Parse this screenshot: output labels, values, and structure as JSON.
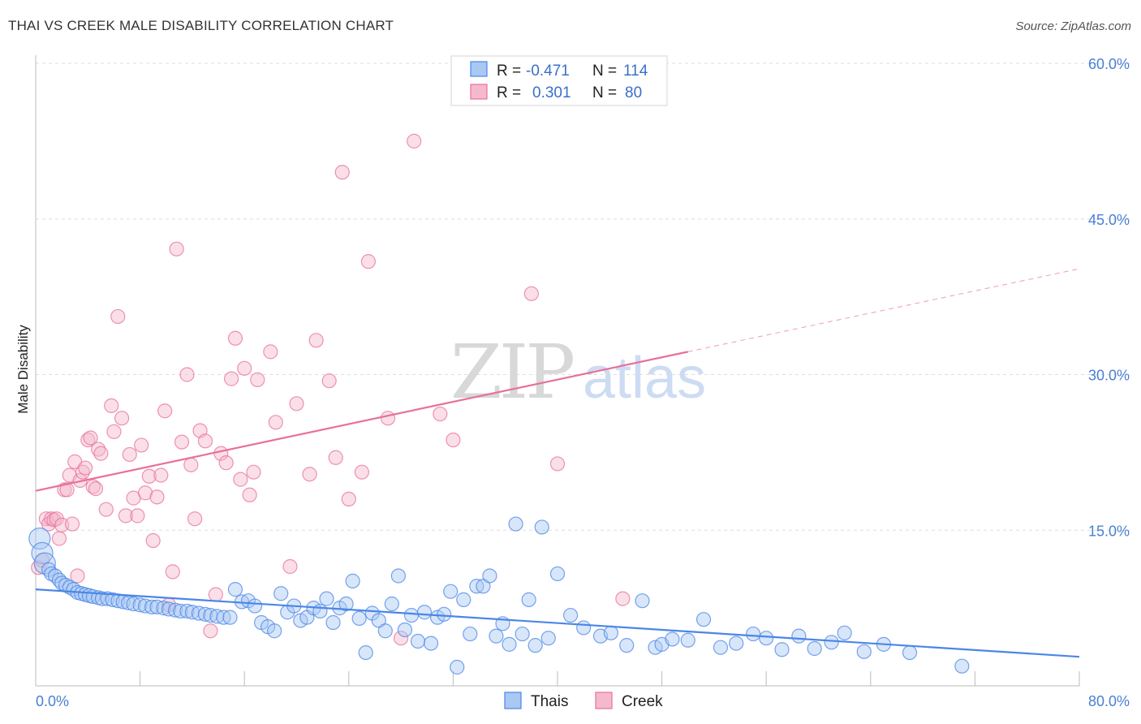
{
  "header": {
    "title": "THAI VS CREEK MALE DISABILITY CORRELATION CHART",
    "source": "Source: ZipAtlas.com"
  },
  "watermark": {
    "zip": "ZIP",
    "atlas": "atlas"
  },
  "colors": {
    "thais": "#4a86e8",
    "thais_fill": "#a9c8f2",
    "creek": "#e8709a",
    "creek_fill": "#f5b9cd",
    "grid": "#dddddd",
    "tick_label": "#4a7fd4"
  },
  "legend": {
    "rows": [
      {
        "r_label": "R =",
        "r_value": "-0.471",
        "n_label": "N =",
        "n_value": "114"
      },
      {
        "r_label": "R =",
        "r_value": "0.301",
        "n_label": "N =",
        "n_value": "80"
      }
    ],
    "bottom": [
      "Thais",
      "Creek"
    ]
  },
  "chart_data": {
    "type": "scatter",
    "title": "THAI VS CREEK MALE DISABILITY CORRELATION CHART",
    "xlabel": "",
    "ylabel": "Male Disability",
    "xlim": [
      0,
      80
    ],
    "ylim": [
      0,
      60
    ],
    "x_tick_labels": [
      "0.0%",
      "80.0%"
    ],
    "y_tick_labels": [
      "15.0%",
      "30.0%",
      "45.0%",
      "60.0%"
    ],
    "y_ticks": [
      15,
      30,
      45,
      60
    ],
    "grid": true,
    "legend_position": "top-center",
    "series": [
      {
        "name": "Thais",
        "r": -0.471,
        "n": 114,
        "trend": {
          "x0": 0,
          "y0": 9.3,
          "x1": 80,
          "y1": 2.8
        },
        "points": [
          [
            0.3,
            14.2
          ],
          [
            0.5,
            12.8
          ],
          [
            0.7,
            11.8
          ],
          [
            1.0,
            11.2
          ],
          [
            1.2,
            10.8
          ],
          [
            1.5,
            10.6
          ],
          [
            1.8,
            10.2
          ],
          [
            2.0,
            9.9
          ],
          [
            2.3,
            9.7
          ],
          [
            2.6,
            9.5
          ],
          [
            2.9,
            9.3
          ],
          [
            3.2,
            9.0
          ],
          [
            3.5,
            8.9
          ],
          [
            3.8,
            8.8
          ],
          [
            4.1,
            8.7
          ],
          [
            4.4,
            8.6
          ],
          [
            4.8,
            8.5
          ],
          [
            5.1,
            8.4
          ],
          [
            5.5,
            8.4
          ],
          [
            5.9,
            8.3
          ],
          [
            6.3,
            8.2
          ],
          [
            6.7,
            8.1
          ],
          [
            7.1,
            8.0
          ],
          [
            7.5,
            7.9
          ],
          [
            8.0,
            7.8
          ],
          [
            8.4,
            7.7
          ],
          [
            8.9,
            7.6
          ],
          [
            9.3,
            7.6
          ],
          [
            9.8,
            7.5
          ],
          [
            10.2,
            7.4
          ],
          [
            10.7,
            7.3
          ],
          [
            11.1,
            7.2
          ],
          [
            11.6,
            7.2
          ],
          [
            12.0,
            7.1
          ],
          [
            12.5,
            7.0
          ],
          [
            13.0,
            6.9
          ],
          [
            13.4,
            6.8
          ],
          [
            13.9,
            6.7
          ],
          [
            14.4,
            6.6
          ],
          [
            14.9,
            6.6
          ],
          [
            15.3,
            9.3
          ],
          [
            15.8,
            8.1
          ],
          [
            16.3,
            8.2
          ],
          [
            16.8,
            7.7
          ],
          [
            17.3,
            6.1
          ],
          [
            17.8,
            5.7
          ],
          [
            18.3,
            5.3
          ],
          [
            18.8,
            8.9
          ],
          [
            19.3,
            7.1
          ],
          [
            19.8,
            7.7
          ],
          [
            20.3,
            6.3
          ],
          [
            20.8,
            6.6
          ],
          [
            21.3,
            7.5
          ],
          [
            21.8,
            7.2
          ],
          [
            22.3,
            8.4
          ],
          [
            22.8,
            6.1
          ],
          [
            23.3,
            7.5
          ],
          [
            23.8,
            7.9
          ],
          [
            24.3,
            10.1
          ],
          [
            24.8,
            6.5
          ],
          [
            25.3,
            3.2
          ],
          [
            25.8,
            7.0
          ],
          [
            26.3,
            6.3
          ],
          [
            26.8,
            5.3
          ],
          [
            27.3,
            7.9
          ],
          [
            27.8,
            10.6
          ],
          [
            28.3,
            5.4
          ],
          [
            28.8,
            6.8
          ],
          [
            29.3,
            4.3
          ],
          [
            29.8,
            7.1
          ],
          [
            30.3,
            4.1
          ],
          [
            30.8,
            6.6
          ],
          [
            31.3,
            6.9
          ],
          [
            31.8,
            9.1
          ],
          [
            32.3,
            1.8
          ],
          [
            32.8,
            8.3
          ],
          [
            33.3,
            5.0
          ],
          [
            33.8,
            9.6
          ],
          [
            34.3,
            9.6
          ],
          [
            34.8,
            10.6
          ],
          [
            35.3,
            4.8
          ],
          [
            35.8,
            6.0
          ],
          [
            36.3,
            4.0
          ],
          [
            36.8,
            15.6
          ],
          [
            37.3,
            5.0
          ],
          [
            37.8,
            8.3
          ],
          [
            38.3,
            3.9
          ],
          [
            38.8,
            15.3
          ],
          [
            39.3,
            4.6
          ],
          [
            40.0,
            10.8
          ],
          [
            41.0,
            6.8
          ],
          [
            42.0,
            5.6
          ],
          [
            43.3,
            4.8
          ],
          [
            44.1,
            5.1
          ],
          [
            45.3,
            3.9
          ],
          [
            46.5,
            8.2
          ],
          [
            47.5,
            3.7
          ],
          [
            48.0,
            4.0
          ],
          [
            48.8,
            4.5
          ],
          [
            50.0,
            4.4
          ],
          [
            51.2,
            6.4
          ],
          [
            52.5,
            3.7
          ],
          [
            53.7,
            4.1
          ],
          [
            55.0,
            5.0
          ],
          [
            56.0,
            4.6
          ],
          [
            57.2,
            3.5
          ],
          [
            58.5,
            4.8
          ],
          [
            59.7,
            3.6
          ],
          [
            61.0,
            4.2
          ],
          [
            62.0,
            5.1
          ],
          [
            63.5,
            3.3
          ],
          [
            65.0,
            4.0
          ],
          [
            67.0,
            3.2
          ],
          [
            71.0,
            1.9
          ]
        ]
      },
      {
        "name": "Creek",
        "r": 0.301,
        "n": 80,
        "trend": {
          "x0": 0,
          "y0": 18.8,
          "x1": 50,
          "y1": 32.2,
          "dash_to_x": 80,
          "dash_to_y": 40.2
        },
        "points": [
          [
            0.2,
            11.4
          ],
          [
            0.5,
            12.1
          ],
          [
            0.8,
            16.1
          ],
          [
            1.0,
            15.6
          ],
          [
            1.2,
            16.1
          ],
          [
            1.4,
            16.0
          ],
          [
            1.6,
            16.1
          ],
          [
            1.8,
            14.2
          ],
          [
            2.0,
            15.5
          ],
          [
            2.2,
            18.9
          ],
          [
            2.4,
            18.9
          ],
          [
            2.6,
            20.3
          ],
          [
            2.8,
            15.6
          ],
          [
            3.0,
            21.6
          ],
          [
            3.2,
            10.6
          ],
          [
            3.4,
            19.8
          ],
          [
            3.6,
            20.6
          ],
          [
            3.8,
            21.0
          ],
          [
            4.0,
            23.7
          ],
          [
            4.2,
            23.9
          ],
          [
            4.4,
            19.2
          ],
          [
            4.6,
            19.0
          ],
          [
            4.8,
            22.8
          ],
          [
            5.0,
            22.4
          ],
          [
            5.4,
            17.0
          ],
          [
            5.8,
            27.0
          ],
          [
            6.0,
            24.5
          ],
          [
            6.3,
            35.6
          ],
          [
            6.6,
            25.8
          ],
          [
            6.9,
            16.4
          ],
          [
            7.2,
            22.3
          ],
          [
            7.5,
            18.1
          ],
          [
            7.8,
            16.4
          ],
          [
            8.1,
            23.2
          ],
          [
            8.4,
            18.6
          ],
          [
            8.7,
            20.2
          ],
          [
            9.0,
            14.0
          ],
          [
            9.3,
            18.2
          ],
          [
            9.6,
            20.3
          ],
          [
            9.9,
            26.5
          ],
          [
            10.2,
            7.8
          ],
          [
            10.5,
            11.0
          ],
          [
            10.8,
            42.1
          ],
          [
            11.2,
            23.5
          ],
          [
            11.6,
            30.0
          ],
          [
            11.9,
            21.3
          ],
          [
            12.2,
            16.1
          ],
          [
            12.6,
            24.6
          ],
          [
            13.0,
            23.6
          ],
          [
            13.4,
            5.3
          ],
          [
            13.8,
            8.8
          ],
          [
            14.2,
            22.4
          ],
          [
            14.6,
            21.5
          ],
          [
            15.0,
            29.6
          ],
          [
            15.3,
            33.5
          ],
          [
            15.7,
            19.9
          ],
          [
            16.0,
            30.6
          ],
          [
            16.4,
            18.4
          ],
          [
            16.7,
            20.6
          ],
          [
            17.0,
            29.5
          ],
          [
            18.0,
            32.2
          ],
          [
            18.4,
            25.4
          ],
          [
            19.5,
            11.5
          ],
          [
            20.0,
            27.2
          ],
          [
            21.0,
            20.4
          ],
          [
            21.5,
            33.3
          ],
          [
            22.5,
            29.4
          ],
          [
            23.0,
            22.0
          ],
          [
            23.5,
            49.5
          ],
          [
            24.0,
            18.0
          ],
          [
            25.0,
            20.6
          ],
          [
            25.5,
            40.9
          ],
          [
            27.0,
            25.8
          ],
          [
            28.0,
            4.6
          ],
          [
            29.0,
            52.5
          ],
          [
            31.0,
            26.2
          ],
          [
            32.0,
            23.7
          ],
          [
            38.0,
            37.8
          ],
          [
            40.0,
            21.4
          ],
          [
            45.0,
            8.4
          ]
        ]
      }
    ]
  }
}
